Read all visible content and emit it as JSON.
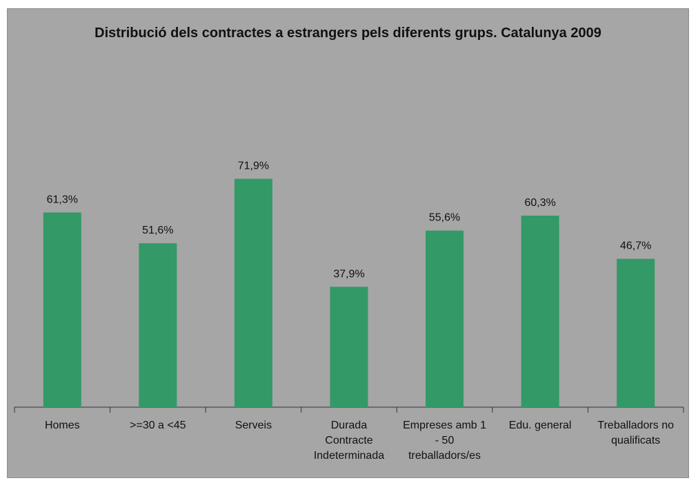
{
  "chart_data": {
    "type": "bar",
    "title": "Distribució dels contractes a estrangers pels diferents grups. Catalunya 2009",
    "categories": [
      "Homes",
      ">=30 a <45",
      "Serveis",
      "Durada Contracte Indeterminada",
      "Empreses amb 1 - 50 treballadors/es",
      "Edu. general",
      "Treballadors no qualificats"
    ],
    "values": [
      61.3,
      51.6,
      71.9,
      37.9,
      55.6,
      60.3,
      46.7
    ],
    "value_labels": [
      "61,3%",
      "51,6%",
      "71,9%",
      "37,9%",
      "55,6%",
      "60,3%",
      "46,7%"
    ],
    "ylim": [
      0,
      100
    ],
    "grid": false,
    "legend": "none",
    "bar_color": "#339966",
    "background_color": "#a6a6a6"
  }
}
